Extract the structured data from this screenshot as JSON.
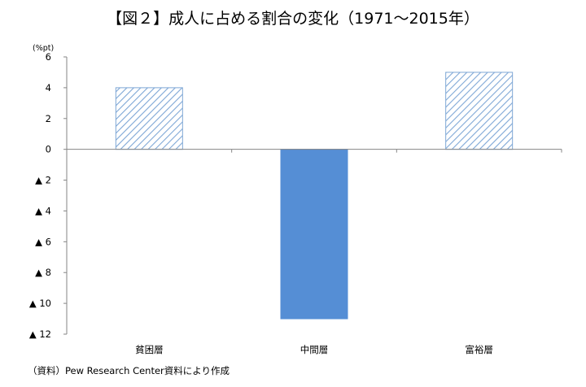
{
  "title": "【図２】成人に占める割合の変化（1971～2015年）",
  "source": "（資料）Pew Research Center資料により作成",
  "chart_data": {
    "type": "bar",
    "unit_label": "(%pt)",
    "categories": [
      "貧困層",
      "中間層",
      "富裕層"
    ],
    "values": [
      4,
      -11,
      5
    ],
    "bar_styles": [
      "hatched",
      "solid",
      "hatched"
    ],
    "ylim": [
      -12,
      6
    ],
    "yticks": [
      6,
      4,
      2,
      0,
      -2,
      -4,
      -6,
      -8,
      -10,
      -12
    ],
    "ytick_labels": [
      "6",
      "4",
      "2",
      "0",
      "▲ 2",
      "▲ 4",
      "▲ 6",
      "▲ 8",
      "▲ 10",
      "▲ 12"
    ],
    "colors": {
      "solid": "#558ed5",
      "hatch": "#7ea7d6",
      "axis": "#868686"
    },
    "grid": false,
    "legend": "none"
  }
}
